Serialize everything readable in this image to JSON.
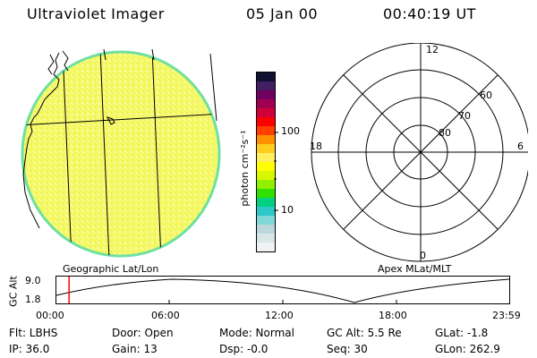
{
  "header": {
    "instrument": "Ultraviolet Imager",
    "date": "05 Jan 00",
    "time": "00:40:19 UT"
  },
  "colorbar": {
    "label": "photon cm⁻²s⁻¹",
    "tick_100": "100",
    "tick_10": "10",
    "colors": [
      "#eef2f2",
      "#d8e6e8",
      "#bcd8dc",
      "#7fd8d8",
      "#2ec8c8",
      "#00d080",
      "#30e000",
      "#90f000",
      "#d8f800",
      "#ffff00",
      "#ffee60",
      "#ffcc20",
      "#ff9000",
      "#ff4000",
      "#ff0000",
      "#d0003a",
      "#a00050",
      "#700060",
      "#402060",
      "#101030"
    ]
  },
  "left_panel": {
    "caption": "Geographic Lat/Lon"
  },
  "polar": {
    "caption": "Apex MLat/MLT",
    "label_top": "12",
    "label_bottom": "0",
    "label_left": "18",
    "label_right": "6",
    "ring_60": "60",
    "ring_70": "70",
    "ring_80": "80"
  },
  "timeline": {
    "ylabel": "GC Alt",
    "y_high": "9.0",
    "y_low": "1.8",
    "ticks": [
      "00:00",
      "06:00",
      "12:00",
      "18:00",
      "23:59"
    ],
    "marker_time_hours": 0.672
  },
  "info": {
    "filter": "Flt: LBHS",
    "ip": "IP: 36.0",
    "door": "Door: Open",
    "gain": "Gain: 13",
    "mode": "Mode: Normal",
    "dsp": "Dsp:   -0.0",
    "gc_alt": "GC Alt: 5.5 Re",
    "seq": "Seq: 30",
    "glat": "GLat:  -1.8",
    "glon": "GLon: 262.9"
  }
}
